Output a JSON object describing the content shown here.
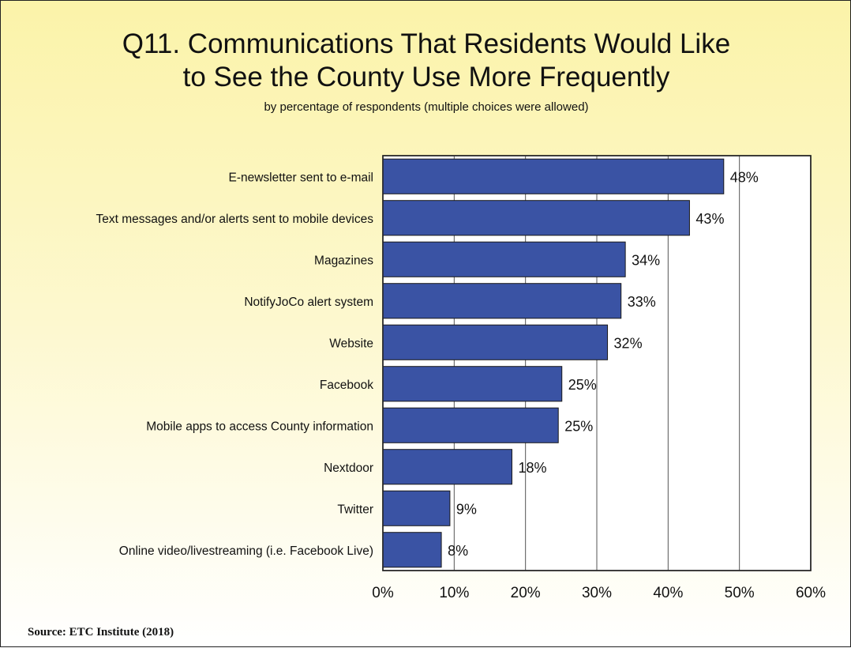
{
  "header": {
    "title_line1": "Q11. Communications That Residents Would Like",
    "title_line2": "to See the County Use More Frequently",
    "subtitle": "by percentage of respondents (multiple choices were allowed)"
  },
  "footer": {
    "source": "Source:  ETC Institute (2018)"
  },
  "colors": {
    "bar": "#3a53a4",
    "bar_stroke": "#1a1a1a",
    "grid": "#555555",
    "plot_background": "#ffffff"
  },
  "chart_data": {
    "type": "bar",
    "orientation": "horizontal",
    "categories": [
      "E-newsletter sent to e-mail",
      "Text messages and/or alerts sent to mobile devices",
      "Magazines",
      "NotifyJoCo alert system",
      "Website",
      "Facebook",
      "Mobile apps to access County information",
      "Nextdoor",
      "Twitter",
      "Online video/livestreaming (i.e. Facebook Live)"
    ],
    "values": [
      47.8,
      43,
      34,
      33.4,
      31.5,
      25.1,
      24.6,
      18.1,
      9.4,
      8.2
    ],
    "data_labels": [
      "48%",
      "43%",
      "34%",
      "33%",
      "32%",
      "25%",
      "25%",
      "18%",
      "9%",
      "8%"
    ],
    "xlim": [
      0,
      60
    ],
    "xticks": [
      0,
      10,
      20,
      30,
      40,
      50,
      60
    ],
    "xtick_labels": [
      "0%",
      "10%",
      "20%",
      "30%",
      "40%",
      "50%",
      "60%"
    ],
    "grid": "vertical",
    "legend": "none"
  }
}
